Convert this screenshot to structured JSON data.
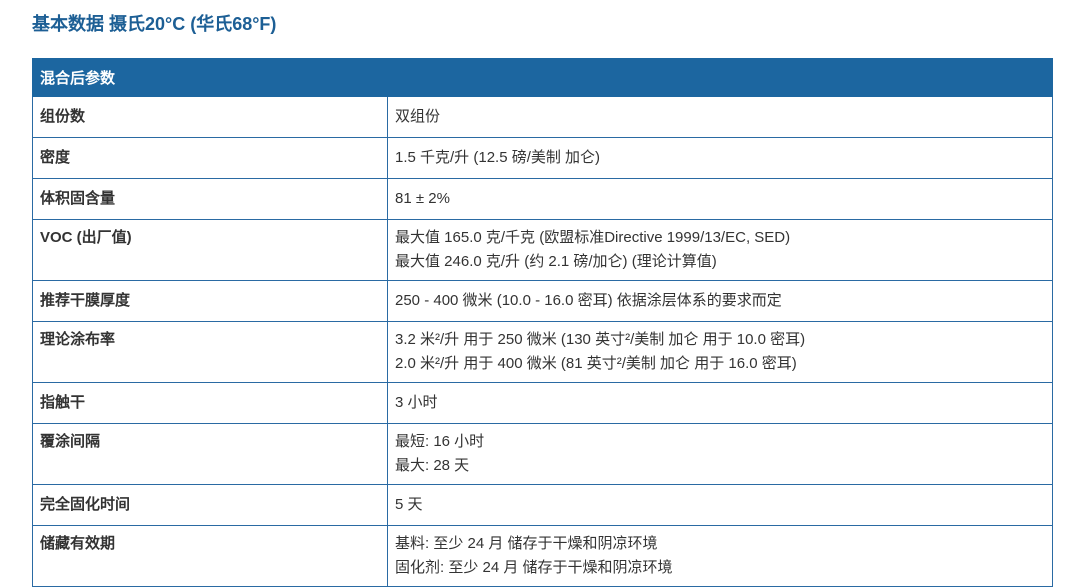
{
  "title": "基本数据 摄氏20°C (华氏68°F)",
  "table": {
    "header": "混合后参数",
    "rows": [
      {
        "label": "组份数",
        "lines": [
          "双组份"
        ]
      },
      {
        "label": "密度",
        "lines": [
          "1.5 千克/升 (12.5 磅/美制 加仑)"
        ]
      },
      {
        "label": "体积固含量",
        "lines": [
          "81 ± 2%"
        ]
      },
      {
        "label": "VOC (出厂值)",
        "lines": [
          "最大值 165.0 克/千克 (欧盟标准Directive 1999/13/EC, SED)",
          "最大值 246.0 克/升 (约 2.1 磅/加仑) (理论计算值)"
        ]
      },
      {
        "label": "推荐干膜厚度",
        "lines": [
          "250 - 400 微米 (10.0 - 16.0 密耳) 依据涂层体系的要求而定"
        ]
      },
      {
        "label": "理论涂布率",
        "lines": [
          "3.2 米²/升 用于 250 微米 (130 英寸²/美制 加仑 用于 10.0 密耳)",
          "2.0 米²/升 用于 400 微米 (81 英寸²/美制 加仑 用于 16.0 密耳)"
        ]
      },
      {
        "label": "指触干",
        "lines": [
          "3 小时"
        ]
      },
      {
        "label": "覆涂间隔",
        "lines": [
          "最短: 16 小时",
          "最大: 28 天"
        ]
      },
      {
        "label": "完全固化时间",
        "lines": [
          "5 天"
        ]
      },
      {
        "label": "储藏有效期",
        "lines": [
          "基料: 至少 24 月 储存于干燥和阴凉环境",
          "固化剂: 至少 24 月 储存于干燥和阴凉环境"
        ]
      }
    ]
  }
}
